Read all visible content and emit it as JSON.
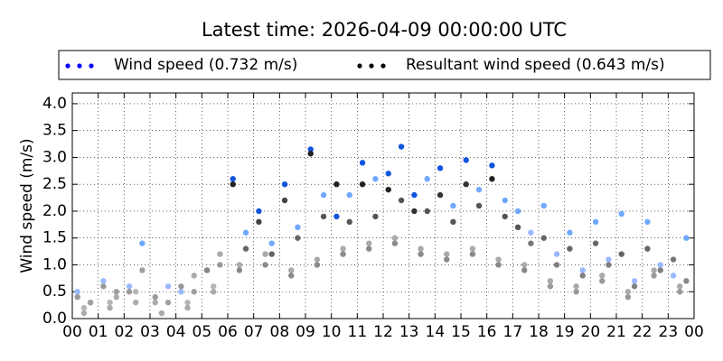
{
  "chart_data": {
    "type": "scatter",
    "title": "Latest time: 2026-04-09 00:00:00 UTC",
    "ylabel": "Wind speed (m/s)",
    "xlim": [
      0,
      24
    ],
    "xticks": [
      {
        "value": 0,
        "label": "00"
      },
      {
        "value": 1,
        "label": "01"
      },
      {
        "value": 2,
        "label": "02"
      },
      {
        "value": 3,
        "label": "03"
      },
      {
        "value": 4,
        "label": "04"
      },
      {
        "value": 5,
        "label": "05"
      },
      {
        "value": 6,
        "label": "06"
      },
      {
        "value": 7,
        "label": "07"
      },
      {
        "value": 8,
        "label": "08"
      },
      {
        "value": 9,
        "label": "09"
      },
      {
        "value": 10,
        "label": "10"
      },
      {
        "value": 11,
        "label": "11"
      },
      {
        "value": 12,
        "label": "12"
      },
      {
        "value": 13,
        "label": "13"
      },
      {
        "value": 14,
        "label": "14"
      },
      {
        "value": 15,
        "label": "15"
      },
      {
        "value": 16,
        "label": "16"
      },
      {
        "value": 17,
        "label": "17"
      },
      {
        "value": 18,
        "label": "18"
      },
      {
        "value": 19,
        "label": "19"
      },
      {
        "value": 20,
        "label": "20"
      },
      {
        "value": 21,
        "label": "21"
      },
      {
        "value": 22,
        "label": "22"
      },
      {
        "value": 23,
        "label": "23"
      },
      {
        "value": 24,
        "label": "00"
      }
    ],
    "ylim": [
      0,
      4.2
    ],
    "yticks": [
      {
        "value": 0,
        "label": "0.0"
      },
      0.5,
      {
        "value": 1,
        "label": "1.0"
      },
      1.5,
      {
        "value": 2,
        "label": "2.0"
      },
      2.5,
      {
        "value": 3,
        "label": "3.0"
      },
      3.5,
      {
        "value": 4,
        "label": "4.0"
      }
    ],
    "grid": true,
    "x": [
      0.2,
      0.7,
      0.45,
      1.2,
      1.7,
      1.45,
      2.2,
      2.7,
      2.45,
      3.2,
      3.7,
      3.45,
      4.2,
      4.7,
      4.45,
      5.2,
      5.7,
      5.45,
      6.2,
      6.7,
      6.45,
      7.2,
      7.7,
      7.45,
      8.2,
      8.7,
      8.45,
      9.2,
      9.7,
      9.45,
      10.2,
      10.7,
      10.45,
      11.2,
      11.7,
      11.45,
      12.2,
      12.7,
      12.45,
      13.2,
      13.7,
      13.45,
      14.2,
      14.7,
      14.45,
      15.2,
      15.7,
      15.45,
      16.2,
      16.7,
      16.45,
      17.2,
      17.7,
      17.45,
      18.2,
      18.7,
      18.45,
      19.2,
      19.7,
      19.45,
      20.2,
      20.7,
      20.45,
      21.2,
      21.7,
      21.45,
      22.2,
      22.7,
      22.45,
      23.2,
      23.7,
      23.45
    ],
    "series": [
      {
        "name": "Wind speed (0.732 m/s)",
        "color": "#0000ff",
        "values": [
          0.5,
          0.3,
          0.2,
          0.7,
          0.4,
          0.3,
          0.6,
          1.4,
          0.5,
          0.3,
          0.6,
          0.1,
          0.5,
          0.8,
          0.3,
          0.9,
          1.2,
          0.6,
          2.6,
          1.6,
          1.0,
          2.0,
          1.4,
          1.2,
          2.5,
          1.7,
          0.9,
          3.15,
          2.3,
          1.1,
          1.9,
          2.3,
          1.3,
          2.9,
          2.6,
          1.4,
          2.7,
          3.2,
          1.5,
          2.3,
          2.6,
          1.3,
          2.8,
          2.1,
          1.2,
          2.95,
          2.4,
          1.3,
          2.85,
          2.2,
          1.1,
          2.0,
          1.6,
          1.0,
          2.1,
          1.2,
          0.7,
          1.6,
          0.9,
          0.6,
          1.8,
          1.1,
          0.8,
          1.95,
          0.7,
          0.5,
          1.8,
          1.0,
          0.9,
          0.8,
          1.5,
          0.6
        ],
        "colors": [
          "#9ab8ff",
          "#aaaaaa",
          "#b5b5b5",
          "#9ab8ff",
          "#aaaaaa",
          "#b5b5b5",
          "#9ab8ff",
          "#6fa8ff",
          "#b5b5b5",
          "#aaaaaa",
          "#9ab8ff",
          "#b5b5b5",
          "#9ab8ff",
          "#aaaaaa",
          "#b5b5b5",
          "#6fa8ff",
          "#aaaaaa",
          "#b5b5b5",
          "#1155dd",
          "#6fa8ff",
          "#aaaaaa",
          "#1155dd",
          "#6fa8ff",
          "#aaaaaa",
          "#1155dd",
          "#6fa8ff",
          "#aaaaaa",
          "#1155dd",
          "#6fa8ff",
          "#aaaaaa",
          "#1155dd",
          "#6fa8ff",
          "#aaaaaa",
          "#1155dd",
          "#6fa8ff",
          "#aaaaaa",
          "#1155dd",
          "#1155dd",
          "#aaaaaa",
          "#1155dd",
          "#6fa8ff",
          "#aaaaaa",
          "#1155dd",
          "#6fa8ff",
          "#aaaaaa",
          "#1155dd",
          "#6fa8ff",
          "#aaaaaa",
          "#1155dd",
          "#6fa8ff",
          "#aaaaaa",
          "#6fa8ff",
          "#9ab8ff",
          "#aaaaaa",
          "#6fa8ff",
          "#9ab8ff",
          "#aaaaaa",
          "#6fa8ff",
          "#9ab8ff",
          "#aaaaaa",
          "#6fa8ff",
          "#9ab8ff",
          "#aaaaaa",
          "#6fa8ff",
          "#9ab8ff",
          "#aaaaaa",
          "#6fa8ff",
          "#9ab8ff",
          "#aaaaaa",
          "#9ab8ff",
          "#6fa8ff",
          "#aaaaaa"
        ]
      },
      {
        "name": "Resultant wind speed (0.643 m/s)",
        "color": "#000000",
        "values": [
          0.4,
          0.3,
          0.1,
          0.6,
          0.5,
          0.2,
          0.5,
          0.9,
          0.3,
          0.4,
          0.3,
          0.1,
          0.6,
          0.5,
          0.2,
          0.9,
          1.0,
          0.5,
          2.5,
          1.3,
          0.9,
          1.8,
          1.2,
          1.0,
          2.2,
          1.5,
          0.8,
          3.07,
          1.9,
          1.0,
          2.5,
          1.8,
          1.2,
          2.5,
          1.9,
          1.3,
          2.4,
          2.2,
          1.4,
          2.0,
          2.0,
          1.2,
          2.3,
          1.8,
          1.1,
          2.5,
          2.1,
          1.2,
          2.6,
          1.9,
          1.0,
          1.7,
          1.4,
          0.9,
          1.5,
          1.0,
          0.6,
          1.3,
          0.8,
          0.5,
          1.4,
          1.0,
          0.7,
          1.2,
          0.6,
          0.4,
          1.3,
          0.9,
          0.8,
          1.1,
          0.7,
          0.5
        ],
        "colors": [
          "#999999",
          "#a0a0a0",
          "#aaaaaa",
          "#999999",
          "#a0a0a0",
          "#aaaaaa",
          "#999999",
          "#a0a0a0",
          "#aaaaaa",
          "#999999",
          "#a0a0a0",
          "#aaaaaa",
          "#999999",
          "#a0a0a0",
          "#aaaaaa",
          "#888888",
          "#999999",
          "#aaaaaa",
          "#222222",
          "#666666",
          "#8a8a8a",
          "#444444",
          "#666666",
          "#8a8a8a",
          "#444444",
          "#666666",
          "#8a8a8a",
          "#222222",
          "#555555",
          "#8a8a8a",
          "#222222",
          "#555555",
          "#8a8a8a",
          "#222222",
          "#555555",
          "#8a8a8a",
          "#222222",
          "#555555",
          "#8a8a8a",
          "#333333",
          "#555555",
          "#8a8a8a",
          "#333333",
          "#555555",
          "#8a8a8a",
          "#333333",
          "#555555",
          "#8a8a8a",
          "#222222",
          "#555555",
          "#8a8a8a",
          "#555555",
          "#777777",
          "#8a8a8a",
          "#666666",
          "#808080",
          "#999999",
          "#666666",
          "#808080",
          "#999999",
          "#666666",
          "#808080",
          "#999999",
          "#666666",
          "#808080",
          "#999999",
          "#666666",
          "#808080",
          "#999999",
          "#777777",
          "#888888",
          "#999999"
        ]
      }
    ]
  }
}
